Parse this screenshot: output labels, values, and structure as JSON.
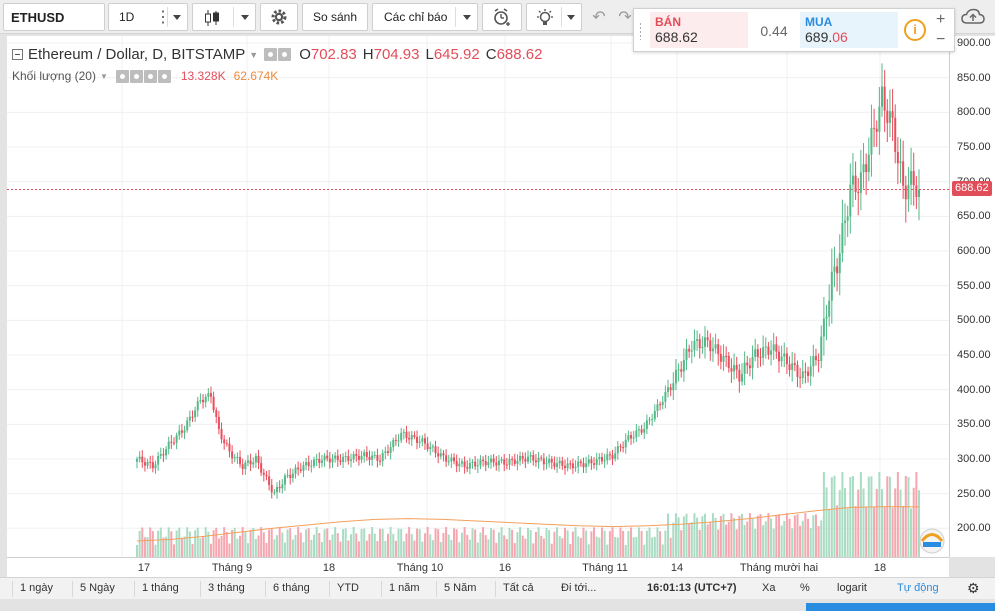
{
  "toolbar": {
    "symbol": "ETHUSD",
    "interval": "1D",
    "compare_label": "So sánh",
    "indicators_label": "Các chỉ báo"
  },
  "legend": {
    "title": "Ethereum / Dollar, D, BITSTAMP",
    "open_label": "O",
    "open_value": "702.83",
    "high_label": "H",
    "high_value": "704.93",
    "low_label": "L",
    "low_value": "645.92",
    "close_label": "C",
    "close_value": "688.62",
    "volume_label": "Khối lượng (20)",
    "volume_value": "13.328K",
    "volume_ma_value": "62.674K"
  },
  "ticket": {
    "sell_label": "BÁN",
    "sell_price": "688.62",
    "spread": "0.44",
    "buy_label": "MUA",
    "buy_price_main": "689.",
    "buy_price_tail": "06",
    "info_symbol": "i"
  },
  "price_axis": {
    "ticks": [
      "900.00",
      "850.00",
      "800.00",
      "750.00",
      "700.00",
      "650.00",
      "600.00",
      "550.00",
      "500.00",
      "450.00",
      "400.00",
      "350.00",
      "300.00",
      "250.00",
      "200.00"
    ],
    "last_price": "688.62"
  },
  "time_axis": {
    "labels": [
      "17",
      "Tháng 9",
      "18",
      "Tháng 10",
      "16",
      "Tháng 11",
      "14",
      "Tháng mười hai",
      "18"
    ]
  },
  "bottom_bar": {
    "ranges": [
      "1 ngày",
      "5 Ngày",
      "1 tháng",
      "3 tháng",
      "6 tháng",
      "YTD",
      "1 năm",
      "5 Năm",
      "Tất cả"
    ],
    "goto_label": "Đi tới...",
    "clock": "16:01:13 (UTC+7)",
    "ext_label": "Xa",
    "percent_label": "%",
    "log_label": "logarit",
    "auto_label": "Tự động"
  },
  "colors": {
    "up": "#53b987",
    "down": "#eb4d5c",
    "vol_up": "#a9dcc3",
    "vol_down": "#f5a6ae",
    "vol_ma": "#f4a05b",
    "accent_blue": "#2a8ce0"
  },
  "chart_data": {
    "type": "candlestick",
    "price_range": [
      180,
      910
    ],
    "ticks": [
      200,
      250,
      300,
      350,
      400,
      450,
      500,
      550,
      600,
      650,
      700,
      750,
      800,
      850,
      900
    ],
    "volume_ma_values": [
      20000,
      22000,
      26000,
      31000,
      36000,
      40000,
      44000,
      47000,
      48000,
      47000,
      45000,
      43000,
      41000,
      39000,
      38000,
      39000,
      41000,
      44000,
      48000,
      53000,
      58000,
      62000,
      63000,
      62674
    ]
  }
}
